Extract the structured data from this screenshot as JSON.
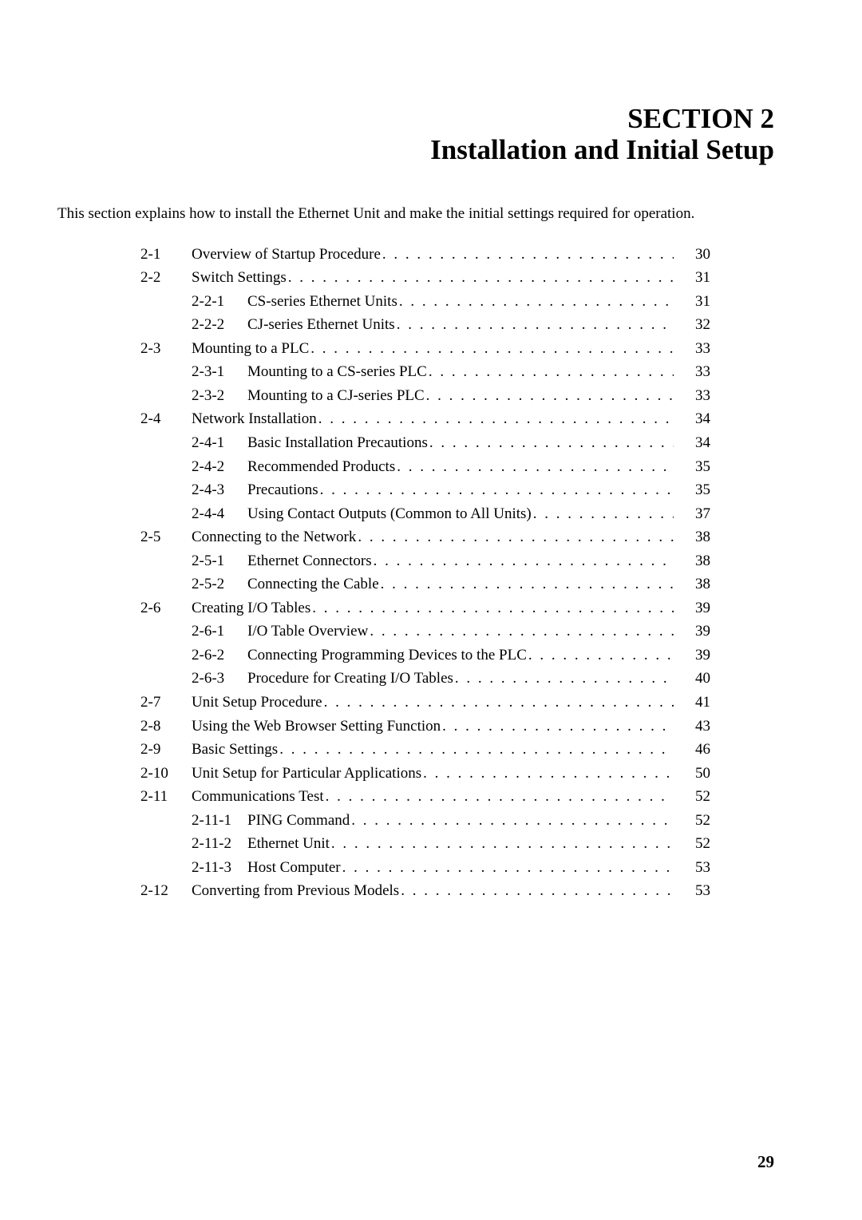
{
  "header": {
    "line1": "SECTION 2",
    "line2": "Installation and Initial Setup"
  },
  "intro": "This section explains how to install the Ethernet Unit and make the initial settings required for operation.",
  "toc": [
    {
      "sec": "2-1",
      "sub": "",
      "title": "Overview of Startup Procedure",
      "page": "30"
    },
    {
      "sec": "2-2",
      "sub": "",
      "title": "Switch Settings",
      "page": "31"
    },
    {
      "sec": "",
      "sub": "2-2-1",
      "title": "CS-series Ethernet Units",
      "page": "31"
    },
    {
      "sec": "",
      "sub": "2-2-2",
      "title": "CJ-series Ethernet Units",
      "page": "32"
    },
    {
      "sec": "2-3",
      "sub": "",
      "title": "Mounting to a PLC",
      "page": "33"
    },
    {
      "sec": "",
      "sub": "2-3-1",
      "title": "Mounting to a CS-series PLC",
      "page": "33"
    },
    {
      "sec": "",
      "sub": "2-3-2",
      "title": "Mounting to a CJ-series PLC",
      "page": "33"
    },
    {
      "sec": "2-4",
      "sub": "",
      "title": "Network Installation",
      "page": "34"
    },
    {
      "sec": "",
      "sub": "2-4-1",
      "title": "Basic Installation Precautions",
      "page": "34"
    },
    {
      "sec": "",
      "sub": "2-4-2",
      "title": "Recommended Products",
      "page": "35"
    },
    {
      "sec": "",
      "sub": "2-4-3",
      "title": "Precautions",
      "page": "35"
    },
    {
      "sec": "",
      "sub": "2-4-4",
      "title": "Using Contact Outputs (Common to All Units)",
      "page": "37"
    },
    {
      "sec": "2-5",
      "sub": "",
      "title": "Connecting to the Network",
      "page": "38"
    },
    {
      "sec": "",
      "sub": "2-5-1",
      "title": "Ethernet Connectors",
      "page": "38"
    },
    {
      "sec": "",
      "sub": "2-5-2",
      "title": "Connecting the Cable",
      "page": "38"
    },
    {
      "sec": "2-6",
      "sub": "",
      "title": "Creating I/O Tables",
      "page": "39"
    },
    {
      "sec": "",
      "sub": "2-6-1",
      "title": "I/O Table Overview",
      "page": "39"
    },
    {
      "sec": "",
      "sub": "2-6-2",
      "title": "Connecting Programming Devices to the PLC",
      "page": "39"
    },
    {
      "sec": "",
      "sub": "2-6-3",
      "title": "Procedure for Creating I/O Tables",
      "page": "40"
    },
    {
      "sec": "2-7",
      "sub": "",
      "title": "Unit Setup Procedure",
      "page": "41"
    },
    {
      "sec": "2-8",
      "sub": "",
      "title": "Using the Web Browser Setting Function",
      "page": "43"
    },
    {
      "sec": "2-9",
      "sub": "",
      "title": "Basic Settings",
      "page": "46"
    },
    {
      "sec": "2-10",
      "sub": "",
      "title": "Unit Setup for Particular Applications",
      "page": "50"
    },
    {
      "sec": "2-11",
      "sub": "",
      "title": "Communications Test",
      "page": "52"
    },
    {
      "sec": "",
      "sub": "2-11-1",
      "title": "PING Command",
      "page": "52"
    },
    {
      "sec": "",
      "sub": "2-11-2",
      "title": "Ethernet Unit",
      "page": "52"
    },
    {
      "sec": "",
      "sub": "2-11-3",
      "title": "Host Computer",
      "page": "53"
    },
    {
      "sec": "2-12",
      "sub": "",
      "title": "Converting from Previous Models",
      "page": "53"
    }
  ],
  "page_number": "29"
}
